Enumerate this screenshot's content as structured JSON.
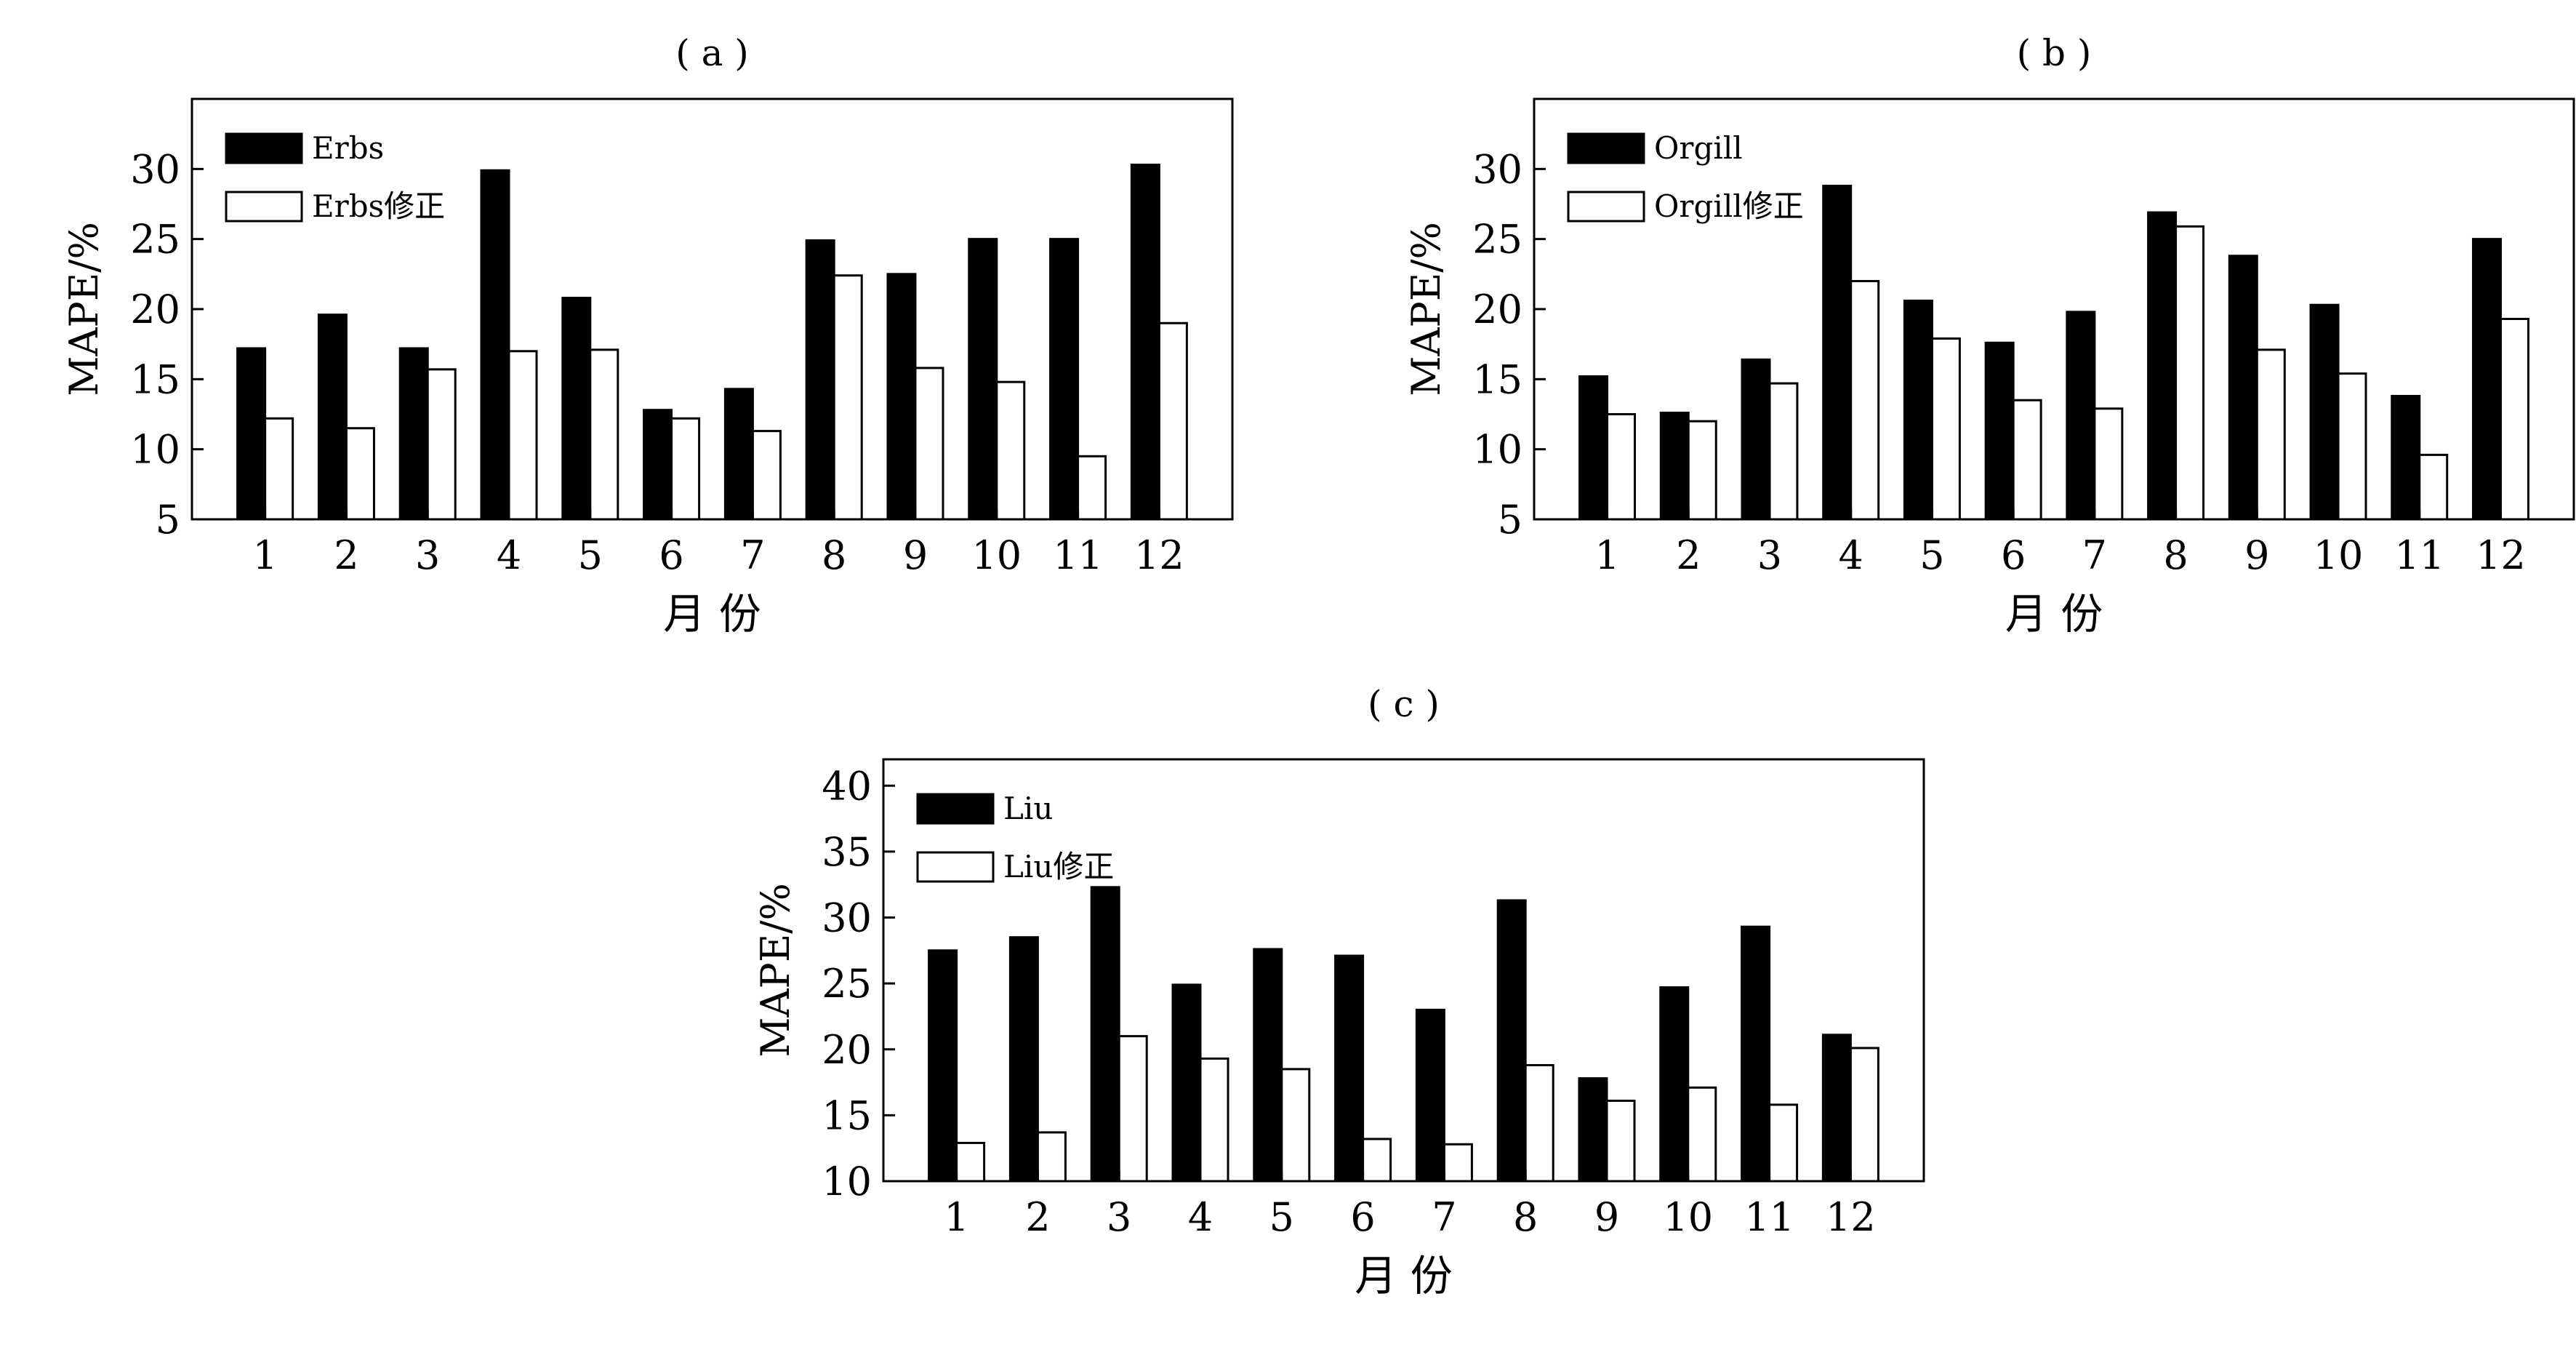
{
  "chart_data": [
    {
      "panel_label": "( a )",
      "type": "bar",
      "categories": [
        "1",
        "2",
        "3",
        "4",
        "5",
        "6",
        "7",
        "8",
        "9",
        "10",
        "11",
        "12"
      ],
      "series": [
        {
          "name": "Erbs",
          "values": [
            17.2,
            19.6,
            17.2,
            29.9,
            20.8,
            12.8,
            14.3,
            24.9,
            22.5,
            25.0,
            25.0,
            30.3
          ]
        },
        {
          "name": "Erbs修正",
          "values": [
            12.2,
            11.5,
            15.7,
            17.0,
            17.1,
            12.2,
            11.3,
            22.4,
            15.8,
            14.8,
            9.5,
            19.0
          ]
        }
      ],
      "xlabel": "月 份",
      "ylabel": "MAPE/%",
      "ylim": [
        5,
        35
      ],
      "yticks": [
        5,
        10,
        15,
        20,
        25,
        30
      ],
      "legend": "top-left",
      "grid": false
    },
    {
      "panel_label": "( b )",
      "type": "bar",
      "categories": [
        "1",
        "2",
        "3",
        "4",
        "5",
        "6",
        "7",
        "8",
        "9",
        "10",
        "11",
        "12"
      ],
      "series": [
        {
          "name": "Orgill",
          "values": [
            15.2,
            12.6,
            16.4,
            28.8,
            20.6,
            17.6,
            19.8,
            26.9,
            23.8,
            20.3,
            13.8,
            25.0
          ]
        },
        {
          "name": "Orgill修正",
          "values": [
            12.5,
            12.0,
            14.7,
            22.0,
            17.9,
            13.5,
            12.9,
            25.9,
            17.1,
            15.4,
            9.6,
            19.3
          ]
        }
      ],
      "xlabel": "月 份",
      "ylabel": "MAPE/%",
      "ylim": [
        5,
        35
      ],
      "yticks": [
        5,
        10,
        15,
        20,
        25,
        30
      ],
      "legend": "top-left",
      "grid": false
    },
    {
      "panel_label": "( c )",
      "type": "bar",
      "categories": [
        "1",
        "2",
        "3",
        "4",
        "5",
        "6",
        "7",
        "8",
        "9",
        "10",
        "11",
        "12"
      ],
      "series": [
        {
          "name": "Liu",
          "values": [
            27.5,
            28.5,
            32.3,
            24.9,
            27.6,
            27.1,
            23.0,
            31.3,
            17.8,
            24.7,
            29.3,
            21.1
          ]
        },
        {
          "name": "Liu修正",
          "values": [
            12.9,
            13.7,
            21.0,
            19.3,
            18.5,
            13.2,
            12.8,
            18.8,
            16.1,
            17.1,
            15.8,
            20.1
          ]
        }
      ],
      "xlabel": "月 份",
      "ylabel": "MAPE/%",
      "ylim": [
        10,
        42
      ],
      "yticks": [
        10,
        15,
        20,
        25,
        30,
        35,
        40
      ],
      "legend": "top-left",
      "grid": false
    }
  ],
  "colors": {
    "series_1_fill": "#000000",
    "series_2_fill": "#ffffff",
    "axis": "#000000"
  }
}
